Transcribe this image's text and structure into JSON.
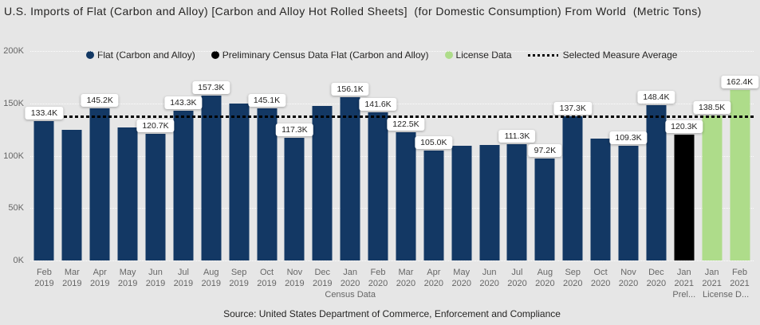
{
  "title": "U.S. Imports of Flat (Carbon and Alloy) [Carbon and Alloy Hot Rolled Sheets]  (for Domestic Consumption) From World  (Metric Tons)",
  "source_note": "Source: United States Department of Commerce, Enforcement and Compliance",
  "colors": {
    "background": "#e6e6e6",
    "census_bar": "#133864",
    "prelim_bar": "#000000",
    "license_bar": "#aedc8a",
    "average_line": "#000000",
    "title_text": "#252423",
    "axis_text": "#666666",
    "label_pill_bg": "#ffffff"
  },
  "legend": {
    "items": [
      {
        "name": "census",
        "label": "Flat (Carbon and Alloy)",
        "marker": "circle",
        "color": "#133864"
      },
      {
        "name": "prelim",
        "label": "Preliminary Census Data Flat (Carbon and Alloy)",
        "marker": "circle",
        "color": "#000000"
      },
      {
        "name": "license",
        "label": "License Data",
        "marker": "circle",
        "color": "#aedc8a"
      },
      {
        "name": "average",
        "label": "Selected Measure Average",
        "marker": "dotted-line",
        "color": "#000000"
      }
    ]
  },
  "y_axis": {
    "tick_labels": [
      "200K",
      "150K",
      "100K",
      "50K",
      "0K"
    ],
    "min_k": 0,
    "max_k": 200
  },
  "x_axis": {
    "group_labels": [
      {
        "name": "census-data",
        "label": "Census Data",
        "start": 0,
        "end": 22
      },
      {
        "name": "prelim-data",
        "label": "Prel...",
        "start": 23,
        "end": 23
      },
      {
        "name": "license-data",
        "label": "License D...",
        "start": 24,
        "end": 25
      }
    ]
  },
  "chart_data": {
    "type": "bar",
    "title": "U.S. Imports of Flat (Carbon and Alloy) [Carbon and Alloy Hot Rolled Sheets]  (for Domestic Consumption) From World  (Metric Tons)",
    "unit": "Metric Tons",
    "ylim_k": [
      0,
      200
    ],
    "grid": true,
    "legend_position": "top",
    "average_line": {
      "name": "Selected Measure Average",
      "value_k": 136.3,
      "style": "dotted-black"
    },
    "series_colors": {
      "census": "#133864",
      "prelim": "#000000",
      "license": "#aedc8a"
    },
    "points": [
      {
        "month": "Feb",
        "year": "2019",
        "series": "census",
        "value_k": 133.4,
        "data_label": "133.4K"
      },
      {
        "month": "Mar",
        "year": "2019",
        "series": "census",
        "value_k": 124.4,
        "data_label": null
      },
      {
        "month": "Apr",
        "year": "2019",
        "series": "census",
        "value_k": 145.2,
        "data_label": "145.2K"
      },
      {
        "month": "May",
        "year": "2019",
        "series": "census",
        "value_k": 127.2,
        "data_label": null
      },
      {
        "month": "Jun",
        "year": "2019",
        "series": "census",
        "value_k": 120.7,
        "data_label": "120.7K"
      },
      {
        "month": "Jul",
        "year": "2019",
        "series": "census",
        "value_k": 143.3,
        "data_label": "143.3K"
      },
      {
        "month": "Aug",
        "year": "2019",
        "series": "census",
        "value_k": 157.3,
        "data_label": "157.3K"
      },
      {
        "month": "Sep",
        "year": "2019",
        "series": "census",
        "value_k": 149.8,
        "data_label": null
      },
      {
        "month": "Oct",
        "year": "2019",
        "series": "census",
        "value_k": 145.1,
        "data_label": "145.1K"
      },
      {
        "month": "Nov",
        "year": "2019",
        "series": "census",
        "value_k": 117.3,
        "data_label": "117.3K"
      },
      {
        "month": "Dec",
        "year": "2019",
        "series": "census",
        "value_k": 147.8,
        "data_label": null
      },
      {
        "month": "Jan",
        "year": "2020",
        "series": "census",
        "value_k": 156.1,
        "data_label": "156.1K"
      },
      {
        "month": "Feb",
        "year": "2020",
        "series": "census",
        "value_k": 141.6,
        "data_label": "141.6K"
      },
      {
        "month": "Mar",
        "year": "2020",
        "series": "census",
        "value_k": 122.5,
        "data_label": "122.5K"
      },
      {
        "month": "Apr",
        "year": "2020",
        "series": "census",
        "value_k": 105.0,
        "data_label": "105.0K"
      },
      {
        "month": "May",
        "year": "2020",
        "series": "census",
        "value_k": 109.5,
        "data_label": null
      },
      {
        "month": "Jun",
        "year": "2020",
        "series": "census",
        "value_k": 110.3,
        "data_label": null
      },
      {
        "month": "Jul",
        "year": "2020",
        "series": "census",
        "value_k": 111.3,
        "data_label": "111.3K"
      },
      {
        "month": "Aug",
        "year": "2020",
        "series": "census",
        "value_k": 97.2,
        "data_label": "97.2K"
      },
      {
        "month": "Sep",
        "year": "2020",
        "series": "census",
        "value_k": 137.3,
        "data_label": "137.3K"
      },
      {
        "month": "Oct",
        "year": "2020",
        "series": "census",
        "value_k": 116.5,
        "data_label": null
      },
      {
        "month": "Nov",
        "year": "2020",
        "series": "census",
        "value_k": 109.3,
        "data_label": "109.3K"
      },
      {
        "month": "Dec",
        "year": "2020",
        "series": "census",
        "value_k": 148.4,
        "data_label": "148.4K"
      },
      {
        "month": "Jan",
        "year": "2021",
        "series": "prelim",
        "value_k": 120.3,
        "data_label": "120.3K"
      },
      {
        "month": "Jan",
        "year": "2021",
        "series": "license",
        "value_k": 138.5,
        "data_label": "138.5K"
      },
      {
        "month": "Feb",
        "year": "2021",
        "series": "license",
        "value_k": 162.4,
        "data_label": "162.4K"
      }
    ]
  }
}
